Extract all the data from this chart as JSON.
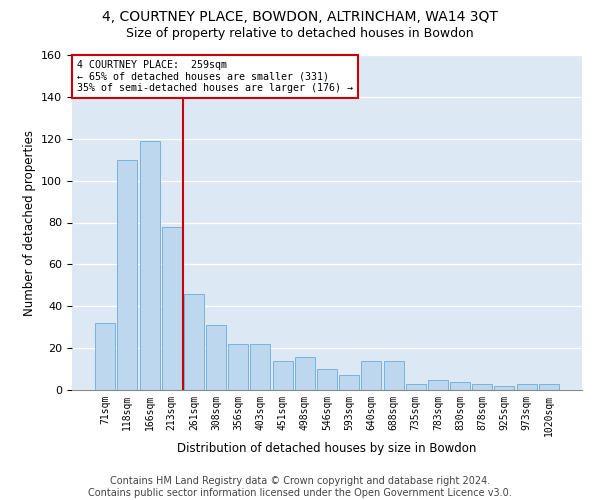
{
  "title": "4, COURTNEY PLACE, BOWDON, ALTRINCHAM, WA14 3QT",
  "subtitle": "Size of property relative to detached houses in Bowdon",
  "xlabel": "Distribution of detached houses by size in Bowdon",
  "ylabel": "Number of detached properties",
  "footer_line1": "Contains HM Land Registry data © Crown copyright and database right 2024.",
  "footer_line2": "Contains public sector information licensed under the Open Government Licence v3.0.",
  "categories": [
    "71sqm",
    "118sqm",
    "166sqm",
    "213sqm",
    "261sqm",
    "308sqm",
    "356sqm",
    "403sqm",
    "451sqm",
    "498sqm",
    "546sqm",
    "593sqm",
    "640sqm",
    "688sqm",
    "735sqm",
    "783sqm",
    "830sqm",
    "878sqm",
    "925sqm",
    "973sqm",
    "1020sqm"
  ],
  "values": [
    32,
    110,
    119,
    78,
    46,
    31,
    22,
    22,
    14,
    16,
    10,
    7,
    14,
    14,
    3,
    5,
    4,
    3,
    2,
    3,
    3
  ],
  "bar_color": "#bdd7ee",
  "bar_edge_color": "#6aacda",
  "grid_color": "#c8d8e8",
  "annotation_text": "4 COURTNEY PLACE:  259sqm\n← 65% of detached houses are smaller (331)\n35% of semi-detached houses are larger (176) →",
  "annotation_box_color": "#ffffff",
  "annotation_box_edge_color": "#cc0000",
  "vline_color": "#cc0000",
  "vline_x": 3.5,
  "ylim": [
    0,
    160
  ],
  "title_fontsize": 10,
  "subtitle_fontsize": 9,
  "tick_fontsize": 7,
  "ylabel_fontsize": 8.5,
  "xlabel_fontsize": 8.5,
  "footer_fontsize": 7,
  "background_color": "#dce9f5"
}
